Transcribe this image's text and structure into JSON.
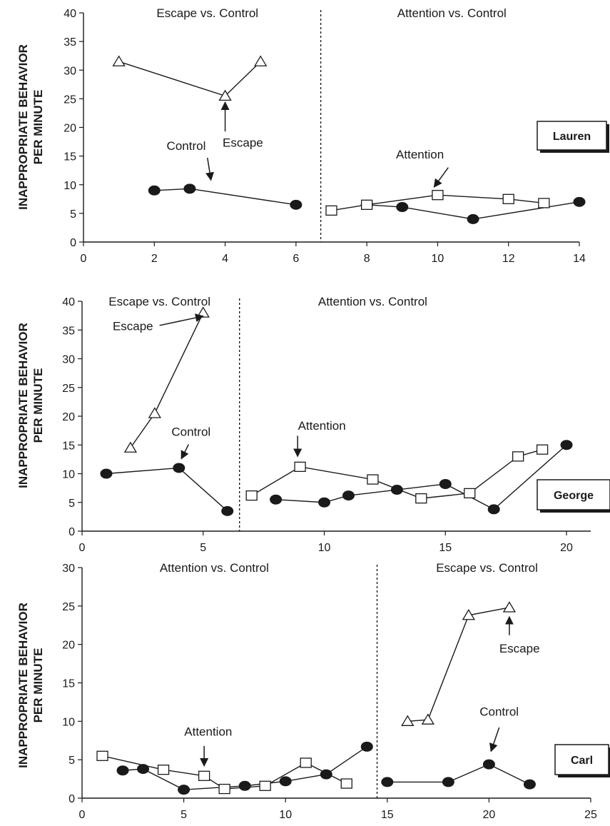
{
  "chart_data": [
    {
      "type": "line",
      "participant": "Lauren",
      "ylabel_line1": "INAPPROPRIATE BEHAVIOR",
      "ylabel_line2": "PER MINUTE",
      "xlim": [
        0,
        14
      ],
      "ylim": [
        0,
        40
      ],
      "x_ticks": [
        0,
        2,
        4,
        6,
        8,
        10,
        12,
        14
      ],
      "y_ticks": [
        0,
        5,
        10,
        15,
        20,
        25,
        30,
        35,
        40
      ],
      "phase_change_x": 6.7,
      "phases": [
        {
          "label": "Escape  vs. Control",
          "x": 3.5
        },
        {
          "label": "Attention  vs. Control",
          "x": 10.4
        }
      ],
      "series": [
        {
          "name": "Escape",
          "marker": "triangle",
          "segments": [
            [
              [
                1,
                31.5
              ],
              [
                4,
                25.5
              ],
              [
                5,
                31.5
              ]
            ]
          ]
        },
        {
          "name": "Control",
          "marker": "circle",
          "segments": [
            [
              [
                2,
                9
              ],
              [
                3,
                9.3
              ],
              [
                6,
                6.5
              ]
            ],
            [
              [
                8,
                6.5
              ],
              [
                9,
                6.1
              ],
              [
                11,
                4
              ],
              [
                14,
                7
              ]
            ]
          ]
        },
        {
          "name": "Attention",
          "marker": "square",
          "segments": [
            [
              [
                7,
                5.5
              ],
              [
                8,
                6.5
              ],
              [
                10,
                8.2
              ],
              [
                12,
                7.5
              ],
              [
                13,
                6.8
              ]
            ]
          ]
        }
      ],
      "annotations": [
        {
          "text": "Control",
          "tx": 2.9,
          "ty": 16.8,
          "ax1": 3.5,
          "ay1": 14.7,
          "ax2": 3.6,
          "ay2": 10.8
        },
        {
          "text": "Escape",
          "tx": 4.5,
          "ty": 17.4,
          "ax1": 4,
          "ay1": 19.3,
          "ax2": 4,
          "ay2": 24.4
        },
        {
          "text": "Attention",
          "tx": 9.5,
          "ty": 15.3,
          "ax1": 10.3,
          "ay1": 13,
          "ax2": 9.9,
          "ay2": 9.6
        }
      ]
    },
    {
      "type": "line",
      "participant": "George",
      "ylabel_line1": "INAPPROPRIATE BEHAVIOR",
      "ylabel_line2": "PER MINUTE",
      "xlim": [
        0,
        21
      ],
      "ylim": [
        0,
        40
      ],
      "x_ticks": [
        0,
        5,
        10,
        15,
        20
      ],
      "y_ticks": [
        0,
        5,
        10,
        15,
        20,
        25,
        30,
        35,
        40
      ],
      "phase_change_x": 6.5,
      "phases": [
        {
          "label": "Escape  vs. Control",
          "x": 3.2
        },
        {
          "label": "Attention  vs. Control",
          "x": 12
        }
      ],
      "series": [
        {
          "name": "Escape",
          "marker": "triangle",
          "segments": [
            [
              [
                2,
                14.5
              ],
              [
                3,
                20.5
              ],
              [
                5,
                38
              ]
            ]
          ]
        },
        {
          "name": "Control",
          "marker": "circle",
          "segments": [
            [
              [
                1,
                10
              ],
              [
                4,
                11
              ],
              [
                6,
                3.5
              ]
            ],
            [
              [
                8,
                5.5
              ],
              [
                10,
                5
              ],
              [
                11,
                6.2
              ],
              [
                13,
                7.2
              ],
              [
                15,
                8.2
              ],
              [
                17,
                3.8
              ],
              [
                20,
                15
              ]
            ]
          ]
        },
        {
          "name": "Attention",
          "marker": "square",
          "segments": [
            [
              [
                7,
                6.2
              ],
              [
                9,
                11.2
              ],
              [
                12,
                9
              ],
              [
                14,
                5.7
              ],
              [
                16,
                6.6
              ],
              [
                18,
                13
              ],
              [
                19,
                14.2
              ]
            ]
          ]
        }
      ],
      "annotations": [
        {
          "text": "Escape",
          "tx": 2.1,
          "ty": 35.7,
          "ax1": 3.2,
          "ay1": 35.8,
          "ax2": 5,
          "ay2": 37.4
        },
        {
          "text": "Control",
          "tx": 4.5,
          "ty": 17.3,
          "ax1": 4.4,
          "ay1": 15.1,
          "ax2": 4.1,
          "ay2": 12.6
        },
        {
          "text": "Attention",
          "tx": 9.9,
          "ty": 18.4,
          "ax1": 8.9,
          "ay1": 16.6,
          "ax2": 8.9,
          "ay2": 13
        }
      ]
    },
    {
      "type": "line",
      "participant": "Carl",
      "ylabel_line1": "INAPPROPRIATE BEHAVIOR",
      "ylabel_line2": "PER MINUTE",
      "xlim": [
        0,
        25
      ],
      "ylim": [
        0,
        30
      ],
      "x_ticks": [
        0,
        5,
        10,
        15,
        20,
        25
      ],
      "y_ticks": [
        0,
        5,
        10,
        15,
        20,
        25,
        30
      ],
      "phase_change_x": 14.5,
      "phases": [
        {
          "label": "Attention  vs. Control",
          "x": 6.5
        },
        {
          "label": "Escape vs.  Control",
          "x": 19.9
        }
      ],
      "series": [
        {
          "name": "Escape",
          "marker": "triangle",
          "segments": [
            [
              [
                16,
                10
              ],
              [
                17,
                10.2
              ],
              [
                19,
                23.8
              ],
              [
                21,
                24.8
              ]
            ]
          ]
        },
        {
          "name": "Control",
          "marker": "circle",
          "segments": [
            [
              [
                2,
                3.6
              ],
              [
                3,
                3.8
              ],
              [
                5,
                1.1
              ],
              [
                8,
                1.6
              ],
              [
                10,
                2.2
              ],
              [
                12,
                3.1
              ],
              [
                14,
                6.7
              ]
            ],
            [
              [
                15,
                2.1
              ],
              [
                18,
                2.1
              ],
              [
                20,
                4.4
              ],
              [
                22,
                1.8
              ]
            ]
          ]
        },
        {
          "name": "Attention",
          "marker": "square",
          "segments": [
            [
              [
                1,
                5.5
              ],
              [
                4,
                3.7
              ],
              [
                6,
                2.9
              ],
              [
                7,
                1.2
              ],
              [
                9,
                1.6
              ],
              [
                11,
                4.6
              ],
              [
                13,
                1.9
              ]
            ]
          ]
        }
      ],
      "annotations": [
        {
          "text": "Attention",
          "tx": 6.2,
          "ty": 8.7,
          "ax1": 6,
          "ay1": 6.8,
          "ax2": 6,
          "ay2": 4.2
        },
        {
          "text": "Escape",
          "tx": 21.5,
          "ty": 19.5,
          "ax1": 21,
          "ay1": 21.2,
          "ax2": 21,
          "ay2": 23.6
        },
        {
          "text": "Control",
          "tx": 20.5,
          "ty": 11.3,
          "ax1": 20.5,
          "ay1": 9.2,
          "ax2": 20.1,
          "ay2": 6.1
        }
      ]
    }
  ]
}
